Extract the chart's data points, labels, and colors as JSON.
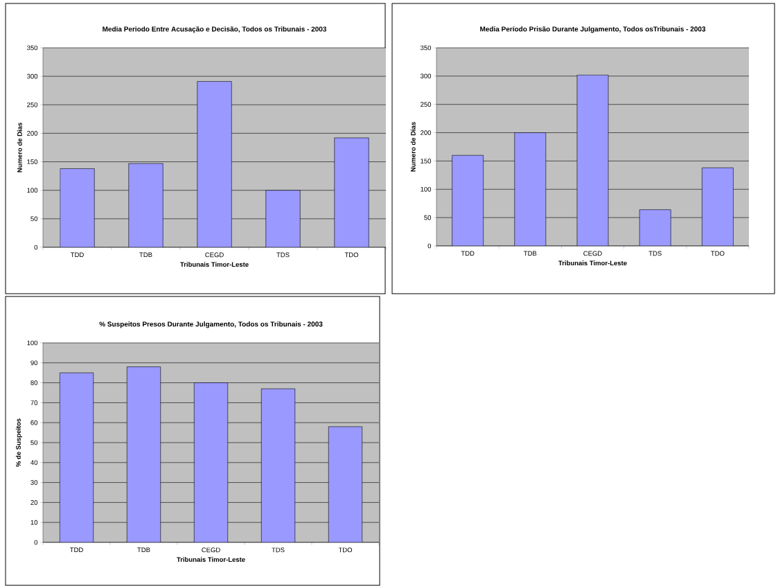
{
  "chart_data": [
    {
      "type": "bar",
      "title": "Media Periodo Entre Acusação e Decisão, Todos os Tribunais - 2003",
      "xlabel": "Tribunais Timor-Leste",
      "ylabel": "Numero de Dias",
      "categories": [
        "TDD",
        "TDB",
        "CEGD",
        "TDS",
        "TDO"
      ],
      "values": [
        138,
        147,
        291,
        100,
        192
      ],
      "color": "#9999ff",
      "ylim": [
        0,
        350
      ],
      "yticks": [
        0,
        50,
        100,
        150,
        200,
        250,
        300,
        350
      ],
      "grid": "y"
    },
    {
      "type": "bar",
      "title": "Media  Período Prisão Durante Julgamento, Todos osTribunais - 2003",
      "xlabel": "Tribunais Timor-Leste",
      "ylabel": "Numero de Dias",
      "categories": [
        "TDD",
        "TDB",
        "CEGD",
        "TDS",
        "TDO"
      ],
      "values": [
        160,
        200,
        302,
        64,
        138
      ],
      "color": "#9999ff",
      "ylim": [
        0,
        350
      ],
      "yticks": [
        0,
        50,
        100,
        150,
        200,
        250,
        300,
        350
      ],
      "grid": "y"
    },
    {
      "type": "bar",
      "title": "% Suspeitos Presos Durante Julgamento, Todos os Tribunais - 2003",
      "xlabel": "Tribunais Timor-Leste",
      "ylabel": "% de Suspeitos",
      "categories": [
        "TDD",
        "TDB",
        "CEGD",
        "TDS",
        "TDO"
      ],
      "values": [
        85,
        88,
        80,
        77,
        58
      ],
      "color": "#9999ff",
      "ylim": [
        0,
        100
      ],
      "yticks": [
        0,
        10,
        20,
        30,
        40,
        50,
        60,
        70,
        80,
        90,
        100
      ],
      "grid": "y"
    }
  ]
}
